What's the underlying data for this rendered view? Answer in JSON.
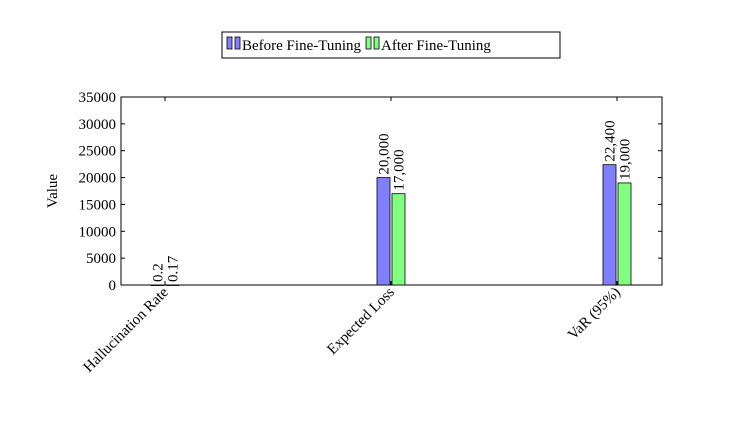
{
  "chart_data": {
    "type": "bar",
    "y_label": "Value",
    "categories": [
      "Hallucination Rate",
      "Expected Loss",
      "VaR (95%)"
    ],
    "series": [
      {
        "name": "Before Fine-Tuning",
        "color": "#8080ff",
        "values": [
          0.2,
          20000,
          22400
        ],
        "value_labels": [
          "0.2",
          "20,000",
          "22,400"
        ]
      },
      {
        "name": "After Fine-Tuning",
        "color": "#80ff80",
        "values": [
          0.17,
          17000,
          19000
        ],
        "value_labels": [
          "0.17",
          "17,000",
          "19,000"
        ]
      }
    ],
    "ylim": [
      0,
      35000
    ],
    "yticks": [
      0,
      5000,
      10000,
      15000,
      20000,
      25000,
      30000,
      35000
    ],
    "legend": "top"
  }
}
